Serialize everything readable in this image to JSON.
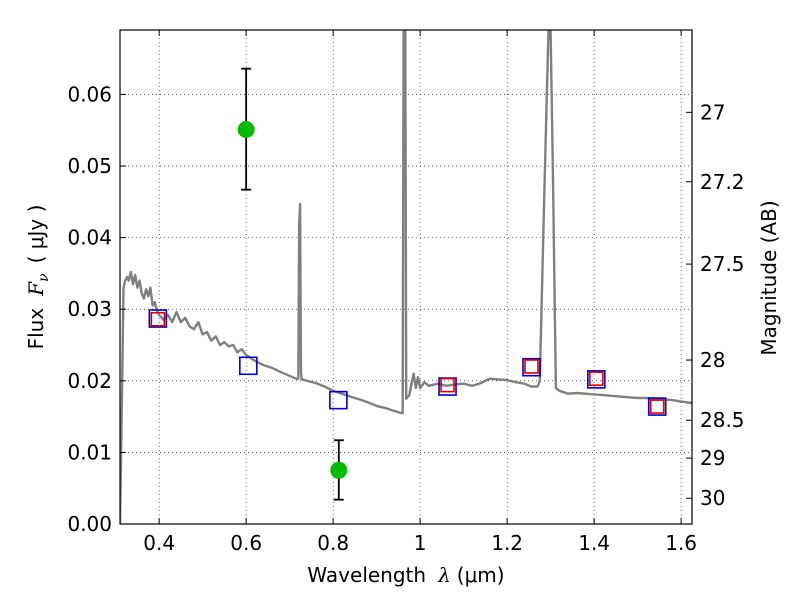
{
  "chart_data": {
    "type": "scatter",
    "xlabel_text": "Wavelength",
    "xlabel_symbol": "λ",
    "xlabel_unit": "(μm)",
    "ylabel_text": "Flux",
    "ylabel_symbol": "F",
    "ylabel_sub": "ν",
    "ylabel_unit": "( μJy )",
    "y2label": "Magnitude (AB)",
    "xlim": [
      0.31,
      1.625
    ],
    "ylim": [
      0.0,
      0.069
    ],
    "grid": true,
    "x_ticks": [
      {
        "value": 0.4,
        "label": "0.4"
      },
      {
        "value": 0.6,
        "label": "0.6"
      },
      {
        "value": 0.8,
        "label": "0.8"
      },
      {
        "value": 1.0,
        "label": "1"
      },
      {
        "value": 1.2,
        "label": "1.2"
      },
      {
        "value": 1.4,
        "label": "1.4"
      },
      {
        "value": 1.6,
        "label": "1.6"
      }
    ],
    "y_ticks": [
      {
        "value": 0.0,
        "label": "0.00"
      },
      {
        "value": 0.01,
        "label": "0.01"
      },
      {
        "value": 0.02,
        "label": "0.02"
      },
      {
        "value": 0.03,
        "label": "0.03"
      },
      {
        "value": 0.04,
        "label": "0.04"
      },
      {
        "value": 0.05,
        "label": "0.05"
      },
      {
        "value": 0.06,
        "label": "0.06"
      }
    ],
    "y2_ticks": [
      {
        "flux": 0.0575,
        "label": "27"
      },
      {
        "flux": 0.0478,
        "label": "27.2"
      },
      {
        "flux": 0.0363,
        "label": "27.5"
      },
      {
        "flux": 0.0229,
        "label": "28"
      },
      {
        "flux": 0.0145,
        "label": "28.5"
      },
      {
        "flux": 0.0092,
        "label": "29"
      },
      {
        "flux": 0.0036,
        "label": "30"
      }
    ],
    "series": [
      {
        "name": "template_spectrum",
        "kind": "line",
        "color": "#808080",
        "points": [
          [
            0.31,
            0.0
          ],
          [
            0.315,
            0.02
          ],
          [
            0.318,
            0.033
          ],
          [
            0.322,
            0.034
          ],
          [
            0.326,
            0.0345
          ],
          [
            0.33,
            0.034
          ],
          [
            0.335,
            0.0352
          ],
          [
            0.34,
            0.0335
          ],
          [
            0.345,
            0.0348
          ],
          [
            0.35,
            0.033
          ],
          [
            0.355,
            0.034
          ],
          [
            0.36,
            0.0322
          ],
          [
            0.365,
            0.0315
          ],
          [
            0.37,
            0.0328
          ],
          [
            0.375,
            0.0318
          ],
          [
            0.38,
            0.033
          ],
          [
            0.385,
            0.0305
          ],
          [
            0.39,
            0.031
          ],
          [
            0.395,
            0.0298
          ],
          [
            0.4,
            0.0292
          ],
          [
            0.41,
            0.0285
          ],
          [
            0.42,
            0.0292
          ],
          [
            0.43,
            0.0282
          ],
          [
            0.44,
            0.0296
          ],
          [
            0.45,
            0.0282
          ],
          [
            0.46,
            0.0288
          ],
          [
            0.47,
            0.0276
          ],
          [
            0.48,
            0.0272
          ],
          [
            0.49,
            0.0282
          ],
          [
            0.5,
            0.0265
          ],
          [
            0.51,
            0.0268
          ],
          [
            0.52,
            0.0256
          ],
          [
            0.53,
            0.0262
          ],
          [
            0.54,
            0.025
          ],
          [
            0.55,
            0.0254
          ],
          [
            0.56,
            0.0248
          ],
          [
            0.57,
            0.025
          ],
          [
            0.58,
            0.024
          ],
          [
            0.59,
            0.0244
          ],
          [
            0.6,
            0.0236
          ],
          [
            0.62,
            0.0228
          ],
          [
            0.64,
            0.0222
          ],
          [
            0.66,
            0.0218
          ],
          [
            0.68,
            0.0212
          ],
          [
            0.7,
            0.0207
          ],
          [
            0.715,
            0.0203
          ],
          [
            0.72,
            0.0203
          ],
          [
            0.722,
            0.042
          ],
          [
            0.724,
            0.0447
          ],
          [
            0.726,
            0.021
          ],
          [
            0.728,
            0.0202
          ],
          [
            0.74,
            0.02
          ],
          [
            0.76,
            0.0197
          ],
          [
            0.78,
            0.0192
          ],
          [
            0.8,
            0.0186
          ],
          [
            0.82,
            0.0182
          ],
          [
            0.84,
            0.0178
          ],
          [
            0.86,
            0.0174
          ],
          [
            0.88,
            0.017
          ],
          [
            0.9,
            0.0165
          ],
          [
            0.92,
            0.0162
          ],
          [
            0.94,
            0.0158
          ],
          [
            0.955,
            0.0155
          ],
          [
            0.96,
            0.0155
          ],
          [
            0.962,
            0.069
          ],
          [
            0.966,
            0.069
          ],
          [
            0.968,
            0.0175
          ],
          [
            0.975,
            0.018
          ],
          [
            0.98,
            0.0195
          ],
          [
            0.985,
            0.021
          ],
          [
            0.99,
            0.019
          ],
          [
            0.995,
            0.0205
          ],
          [
            1.0,
            0.019
          ],
          [
            1.01,
            0.0198
          ],
          [
            1.02,
            0.0193
          ],
          [
            1.04,
            0.0196
          ],
          [
            1.06,
            0.0193
          ],
          [
            1.08,
            0.0195
          ],
          [
            1.1,
            0.0196
          ],
          [
            1.12,
            0.0193
          ],
          [
            1.14,
            0.0197
          ],
          [
            1.16,
            0.0203
          ],
          [
            1.18,
            0.0202
          ],
          [
            1.2,
            0.0201
          ],
          [
            1.22,
            0.0198
          ],
          [
            1.24,
            0.0196
          ],
          [
            1.255,
            0.0192
          ],
          [
            1.27,
            0.0192
          ],
          [
            1.275,
            0.02
          ],
          [
            1.285,
            0.045
          ],
          [
            1.295,
            0.069
          ],
          [
            1.3,
            0.069
          ],
          [
            1.305,
            0.05
          ],
          [
            1.312,
            0.019
          ],
          [
            1.32,
            0.0186
          ],
          [
            1.34,
            0.0182
          ],
          [
            1.36,
            0.0183
          ],
          [
            1.38,
            0.0182
          ],
          [
            1.4,
            0.0181
          ],
          [
            1.42,
            0.018
          ],
          [
            1.44,
            0.0179
          ],
          [
            1.46,
            0.0178
          ],
          [
            1.48,
            0.0177
          ],
          [
            1.5,
            0.0176
          ],
          [
            1.52,
            0.0176
          ],
          [
            1.54,
            0.0175
          ],
          [
            1.56,
            0.0174
          ],
          [
            1.58,
            0.0173
          ],
          [
            1.6,
            0.0171
          ],
          [
            1.625,
            0.0169
          ]
        ]
      },
      {
        "name": "observed_flux",
        "kind": "points_with_errors",
        "color": "#00bb00",
        "points": [
          {
            "x": 0.6,
            "y": 0.0551,
            "yerr_low": 0.0467,
            "yerr_high": 0.0636
          },
          {
            "x": 0.813,
            "y": 0.0075,
            "yerr_low": 0.0034,
            "yerr_high": 0.0117
          }
        ]
      },
      {
        "name": "model_photometry",
        "kind": "square",
        "color": "#0000cc",
        "points": [
          {
            "x": 0.397,
            "y": 0.0287
          },
          {
            "x": 0.605,
            "y": 0.0221
          },
          {
            "x": 0.812,
            "y": 0.0173
          },
          {
            "x": 1.063,
            "y": 0.0192
          },
          {
            "x": 1.256,
            "y": 0.0219
          },
          {
            "x": 1.405,
            "y": 0.0202
          },
          {
            "x": 1.545,
            "y": 0.0164
          }
        ]
      },
      {
        "name": "model_photometry_alt",
        "kind": "square",
        "color": "#dd0000",
        "points": [
          {
            "x": 0.397,
            "y": 0.0286
          },
          {
            "x": 1.063,
            "y": 0.0194
          },
          {
            "x": 1.256,
            "y": 0.022
          },
          {
            "x": 1.405,
            "y": 0.0203
          },
          {
            "x": 1.545,
            "y": 0.0164
          }
        ]
      }
    ]
  }
}
